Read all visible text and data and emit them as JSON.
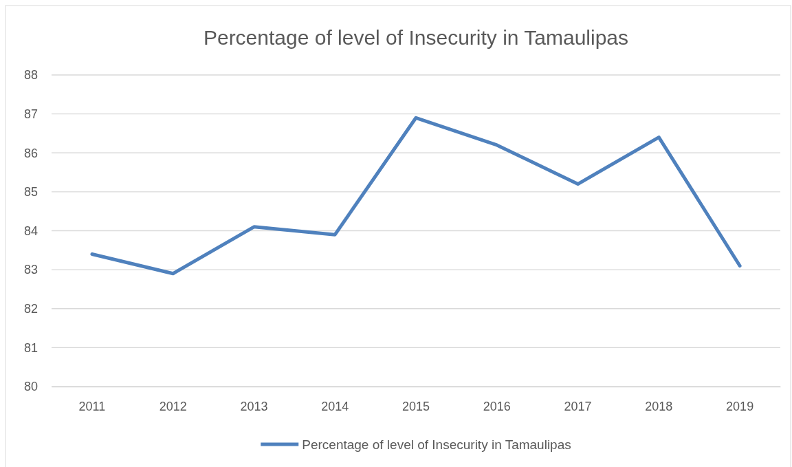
{
  "chart_data": {
    "type": "line",
    "title": "Percentage of level of Insecurity in Tamaulipas",
    "categories": [
      "2011",
      "2012",
      "2013",
      "2014",
      "2015",
      "2016",
      "2017",
      "2018",
      "2019"
    ],
    "series": [
      {
        "name": "Percentage of level of Insecurity in Tamaulipas",
        "color": "#4f81bd",
        "values": [
          83.4,
          82.9,
          84.1,
          83.9,
          86.9,
          86.2,
          85.2,
          86.4,
          83.1
        ]
      }
    ],
    "ylim": [
      80,
      88
    ],
    "yticks": [
      80,
      81,
      82,
      83,
      84,
      85,
      86,
      87,
      88
    ],
    "grid": "y",
    "legend": "bottom",
    "marker": "none",
    "line_style": "solid"
  }
}
